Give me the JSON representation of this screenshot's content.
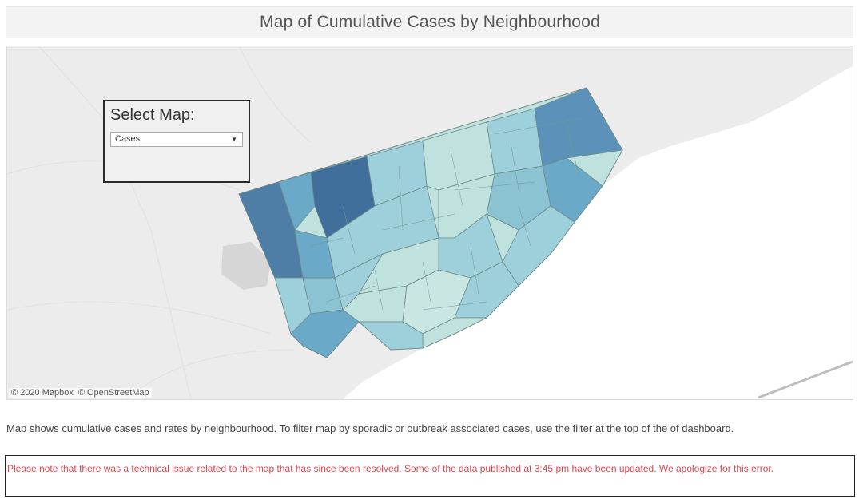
{
  "header": {
    "title": "Map of Cumulative Cases by Neighbourhood"
  },
  "map": {
    "selector": {
      "label": "Select Map:",
      "selected_value": "Cases"
    },
    "attribution": {
      "mapbox": "© 2020 Mapbox",
      "osm": "© OpenStreetMap"
    },
    "colors": {
      "water": "#ffffff",
      "land": "#ececec",
      "choropleth_light": "#c9e6e3",
      "choropleth_mid": "#9dd0da",
      "choropleth_high": "#6aa9c8",
      "choropleth_max": "#3f6f9a"
    }
  },
  "footer": {
    "description": "Map shows cumulative cases and rates by neighbourhood. To filter map by sporadic or outbreak associated cases, use the filter at the top of the of dashboard.",
    "notice": "Please note that there was a technical issue related to the map that has since been resolved. Some of the data published at 3:45 pm have been updated. We apologize for this error.",
    "notice_color": "#e0444f"
  }
}
